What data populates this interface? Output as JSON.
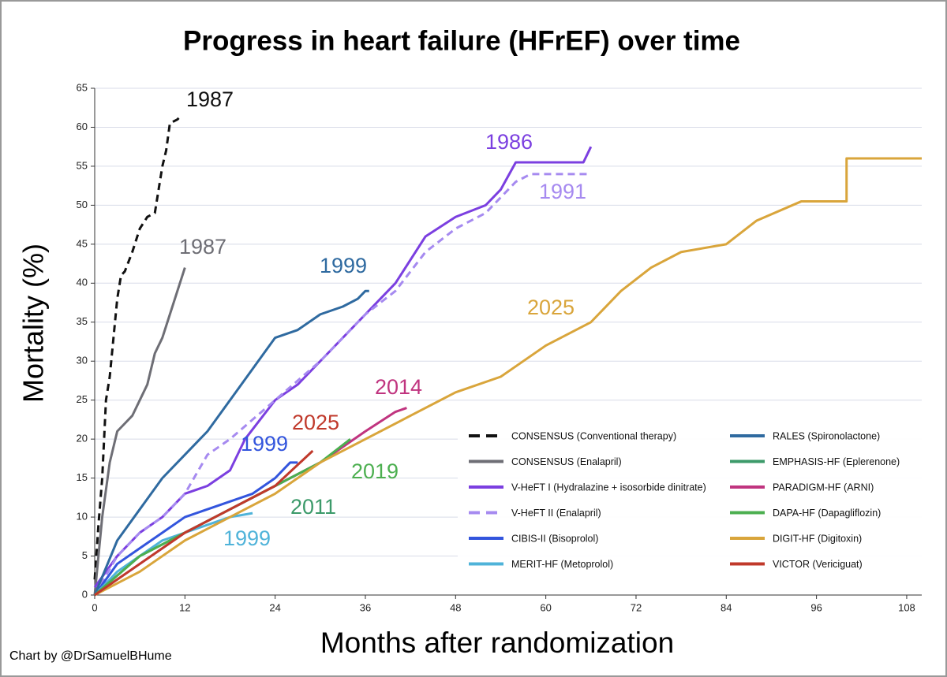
{
  "chart_data": {
    "type": "line",
    "title": "Progress in heart failure (HFrEF) over time",
    "x_label": "Months after randomization",
    "y_label": "Mortality (%)",
    "credit": "Chart by @DrSamuelBHume",
    "xlim": [
      0,
      110
    ],
    "ylim": [
      0,
      65
    ],
    "xticks": [
      0,
      12,
      24,
      36,
      48,
      60,
      72,
      84,
      96,
      108
    ],
    "yticks": [
      0,
      5,
      10,
      15,
      20,
      25,
      30,
      35,
      40,
      45,
      50,
      55,
      60,
      65
    ],
    "grid": true,
    "series": [
      {
        "name": "CONSENSUS (Conventional therapy)",
        "label": "1987",
        "color": "#111111",
        "dash": true,
        "x": [
          0,
          0.5,
          1,
          1.5,
          2,
          3,
          3.5,
          4,
          5,
          6,
          7,
          8,
          9,
          9.5,
          10,
          11,
          11.5
        ],
        "values": [
          2,
          9,
          15,
          25,
          28,
          38,
          41,
          41.5,
          44,
          47,
          48.5,
          49,
          55,
          57,
          60.5,
          61,
          61.5
        ]
      },
      {
        "name": "CONSENSUS (Enalapril)",
        "label": "1987",
        "color": "#6e6e75",
        "dash": false,
        "x": [
          0,
          1,
          2,
          3,
          4,
          5,
          6,
          7,
          8,
          9,
          10,
          11,
          12
        ],
        "values": [
          0,
          10,
          17,
          21,
          22,
          23,
          25,
          27,
          31,
          33,
          36,
          39,
          42
        ]
      },
      {
        "name": "V-HeFT I (Hydralazine + isosorbide dinitrate)",
        "label": "1986",
        "color": "#7b3fe0",
        "dash": false,
        "x": [
          0,
          3,
          6,
          9,
          12,
          15,
          18,
          20,
          24,
          27,
          30,
          36,
          40,
          44,
          48,
          52,
          54,
          56,
          62,
          65,
          66
        ],
        "values": [
          1,
          5,
          8,
          10,
          13,
          14,
          16,
          20,
          25,
          27,
          30,
          36,
          40,
          46,
          48.5,
          50,
          52,
          55.5,
          55.5,
          55.5,
          57.5
        ]
      },
      {
        "name": "V-HeFT II (Enalapril)",
        "label": "1991",
        "color": "#a68af0",
        "dash": true,
        "x": [
          0,
          3,
          6,
          9,
          12,
          15,
          18,
          24,
          30,
          36,
          40,
          44,
          48,
          52,
          54,
          56,
          58,
          66
        ],
        "values": [
          0,
          5,
          8,
          10,
          13,
          18,
          20,
          25,
          30,
          36,
          39,
          44,
          47,
          49,
          51,
          53,
          54,
          54
        ]
      },
      {
        "name": "CIBIS-II (Bisoprolol)",
        "label": "1999",
        "color": "#3355dd",
        "dash": false,
        "x": [
          0,
          3,
          6,
          9,
          12,
          15,
          18,
          21,
          24,
          26,
          27
        ],
        "values": [
          0,
          4,
          6,
          8,
          10,
          11,
          12,
          13,
          15,
          17,
          17
        ]
      },
      {
        "name": "MERIT-HF (Metoprolol)",
        "label": "1999",
        "color": "#4fb3d9",
        "dash": false,
        "x": [
          0,
          3,
          6,
          9,
          12,
          15,
          18,
          21
        ],
        "values": [
          0,
          3,
          5,
          7,
          8,
          9,
          10,
          10.5
        ]
      },
      {
        "name": "RALES (Spironolactone)",
        "label": "1999",
        "color": "#2f6aa0",
        "dash": false,
        "x": [
          0,
          3,
          6,
          9,
          12,
          15,
          18,
          21,
          24,
          27,
          30,
          33,
          35,
          36,
          36.5
        ],
        "values": [
          0,
          7,
          11,
          15,
          18,
          21,
          25,
          29,
          33,
          34,
          36,
          37,
          38,
          39,
          39
        ]
      },
      {
        "name": "EMPHASIS-HF (Eplerenone)",
        "label": "2011",
        "color": "#3c9a6a",
        "dash": false,
        "x": [
          0,
          6,
          12,
          18,
          24,
          30
        ],
        "values": [
          0,
          5,
          8,
          11,
          14,
          17
        ]
      },
      {
        "name": "PARADIGM-HF (ARNI)",
        "label": "2014",
        "color": "#c0347f",
        "dash": false,
        "x": [
          0,
          6,
          12,
          18,
          24,
          30,
          36,
          40,
          41.5
        ],
        "values": [
          0,
          4,
          8,
          11,
          14,
          17,
          21,
          23.5,
          24
        ]
      },
      {
        "name": "DAPA-HF (Dapagliflozin)",
        "label": "2019",
        "color": "#4caf50",
        "dash": false,
        "x": [
          0,
          6,
          12,
          18,
          24,
          30,
          34
        ],
        "values": [
          0,
          5,
          8,
          11,
          14,
          17,
          20
        ]
      },
      {
        "name": "DIGIT-HF (Digitoxin)",
        "label": "2025",
        "color": "#d9a53b",
        "dash": false,
        "x": [
          0,
          6,
          12,
          18,
          24,
          30,
          36,
          42,
          48,
          54,
          60,
          66,
          70,
          74,
          78,
          84,
          88,
          94,
          100,
          100,
          110
        ],
        "values": [
          0,
          3,
          7,
          10,
          13,
          17,
          20,
          23,
          26,
          28,
          32,
          35,
          39,
          42,
          44,
          45,
          48,
          50.5,
          50.5,
          56,
          56
        ]
      },
      {
        "name": "VICTOR (Vericiguat)",
        "label": "2025",
        "color": "#c0392b",
        "dash": false,
        "x": [
          0,
          6,
          12,
          18,
          24,
          29
        ],
        "values": [
          0,
          4,
          8,
          11,
          14,
          18.5
        ]
      }
    ]
  }
}
